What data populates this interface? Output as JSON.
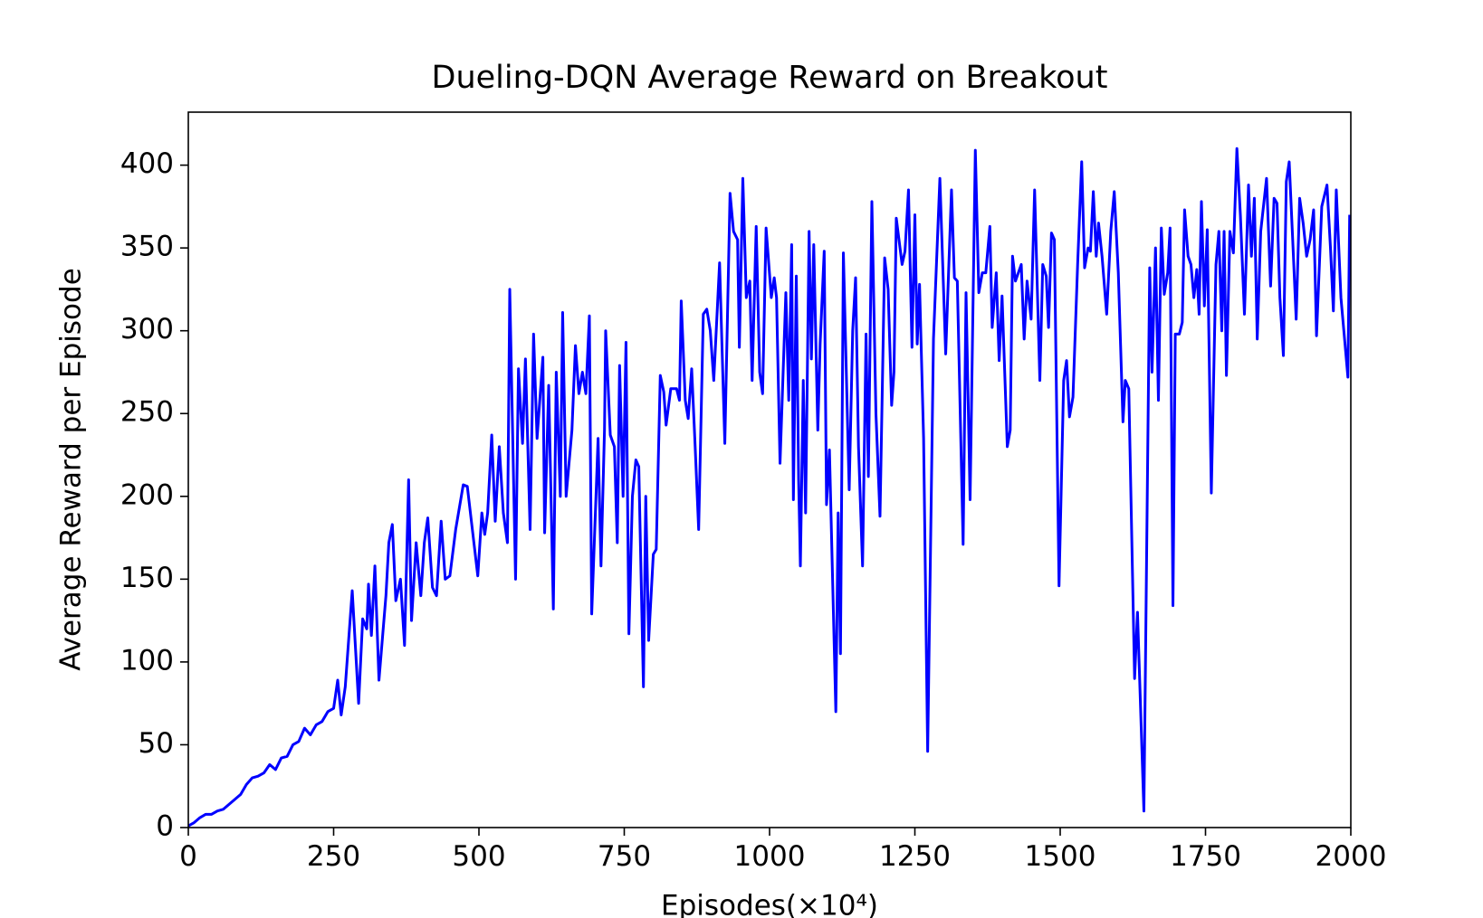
{
  "chart_data": {
    "type": "line",
    "title": "Dueling-DQN Average Reward on Breakout",
    "xlabel": "Episodes(×10⁴)",
    "ylabel": "Average Reward per Episode",
    "xlim": [
      0,
      2000
    ],
    "ylim": [
      0,
      432
    ],
    "xticks": [
      0,
      250,
      500,
      750,
      1000,
      1250,
      1500,
      1750,
      2000
    ],
    "yticks": [
      0,
      50,
      100,
      150,
      200,
      250,
      300,
      350,
      400
    ],
    "x": [
      0,
      10,
      20,
      30,
      40,
      50,
      60,
      70,
      80,
      90,
      100,
      110,
      120,
      130,
      140,
      150,
      160,
      170,
      180,
      190,
      200,
      210,
      220,
      230,
      240,
      250,
      257,
      263,
      270,
      282,
      293,
      300,
      307,
      310,
      315,
      321,
      328,
      340,
      345,
      351,
      357,
      365,
      372,
      379,
      384,
      392,
      400,
      406,
      412,
      420,
      427,
      435,
      442,
      450,
      460,
      473,
      480,
      487,
      498,
      505,
      510,
      515,
      522,
      528,
      535,
      542,
      549,
      553,
      563,
      568,
      575,
      580,
      588,
      594,
      600,
      610,
      613,
      620,
      628,
      633,
      640,
      644,
      650,
      660,
      666,
      672,
      678,
      684,
      690,
      694,
      705,
      710,
      716,
      718,
      726,
      733,
      738,
      742,
      748,
      753,
      758,
      764,
      770,
      775,
      783,
      787,
      792,
      800,
      805,
      812,
      818,
      822,
      830,
      840,
      845,
      848,
      855,
      860,
      866,
      872,
      878,
      886,
      892,
      898,
      904,
      914,
      923,
      932,
      938,
      945,
      948,
      954,
      960,
      966,
      970,
      977,
      983,
      988,
      994,
      1003,
      1008,
      1012,
      1018,
      1028,
      1033,
      1038,
      1041,
      1046,
      1050,
      1053,
      1058,
      1062,
      1068,
      1072,
      1076,
      1083,
      1087,
      1094,
      1098,
      1103,
      1114,
      1118,
      1122,
      1127,
      1137,
      1143,
      1148,
      1153,
      1160,
      1166,
      1170,
      1176,
      1183,
      1190,
      1198,
      1204,
      1210,
      1214,
      1218,
      1228,
      1233,
      1239,
      1245,
      1250,
      1254,
      1258,
      1265,
      1272,
      1282,
      1293,
      1303,
      1313,
      1318,
      1323,
      1333,
      1338,
      1345,
      1354,
      1360,
      1366,
      1372,
      1379,
      1383,
      1390,
      1395,
      1400,
      1409,
      1414,
      1418,
      1423,
      1428,
      1433,
      1438,
      1443,
      1450,
      1456,
      1465,
      1470,
      1476,
      1480,
      1485,
      1490,
      1498,
      1506,
      1511,
      1516,
      1522,
      1530,
      1537,
      1542,
      1548,
      1552,
      1557,
      1562,
      1566,
      1572,
      1580,
      1587,
      1593,
      1600,
      1608,
      1612,
      1618,
      1628,
      1633,
      1644,
      1654,
      1658,
      1664,
      1669,
      1674,
      1679,
      1685,
      1689,
      1694,
      1698,
      1705,
      1710,
      1714,
      1720,
      1725,
      1730,
      1735,
      1739,
      1743,
      1748,
      1753,
      1760,
      1768,
      1773,
      1778,
      1782,
      1786,
      1792,
      1798,
      1804,
      1810,
      1817,
      1824,
      1829,
      1834,
      1839,
      1845,
      1855,
      1862,
      1868,
      1873,
      1878,
      1884,
      1889,
      1894,
      1900,
      1906,
      1912,
      1918,
      1924,
      1930,
      1936,
      1941,
      1950,
      1959,
      1965,
      1970,
      1975,
      1983,
      1995,
      1998
    ],
    "series": [
      {
        "color": "#0000ff",
        "values": [
          1,
          3,
          6,
          8,
          8,
          10,
          11,
          14,
          17,
          20,
          26,
          30,
          31,
          33,
          38,
          35,
          42,
          43,
          50,
          52,
          60,
          56,
          62,
          64,
          70,
          72,
          89,
          68,
          85,
          143,
          75,
          126,
          120,
          147,
          116,
          158,
          89,
          140,
          172,
          183,
          137,
          150,
          110,
          210,
          125,
          172,
          140,
          172,
          187,
          145,
          140,
          185,
          150,
          152,
          180,
          207,
          206,
          185,
          152,
          190,
          177,
          190,
          237,
          185,
          230,
          190,
          172,
          325,
          150,
          277,
          232,
          283,
          180,
          298,
          235,
          284,
          178,
          267,
          132,
          275,
          200,
          311,
          200,
          240,
          291,
          262,
          275,
          262,
          309,
          129,
          235,
          158,
          240,
          300,
          237,
          230,
          172,
          279,
          200,
          293,
          117,
          200,
          222,
          218,
          85,
          200,
          113,
          165,
          168,
          273,
          263,
          243,
          265,
          265,
          258,
          318,
          258,
          247,
          277,
          230,
          180,
          310,
          313,
          300,
          270,
          341,
          232,
          383,
          360,
          355,
          290,
          392,
          320,
          330,
          270,
          363,
          275,
          262,
          362,
          320,
          332,
          320,
          220,
          323,
          258,
          352,
          198,
          333,
          210,
          158,
          270,
          190,
          360,
          283,
          352,
          240,
          292,
          348,
          195,
          228,
          70,
          190,
          105,
          347,
          204,
          300,
          332,
          230,
          158,
          298,
          212,
          378,
          250,
          188,
          344,
          325,
          255,
          275,
          368,
          340,
          348,
          385,
          290,
          370,
          292,
          328,
          235,
          46,
          295,
          392,
          286,
          385,
          332,
          330,
          171,
          323,
          198,
          409,
          323,
          335,
          335,
          363,
          302,
          335,
          282,
          321,
          230,
          240,
          345,
          330,
          335,
          340,
          295,
          330,
          307,
          385,
          270,
          340,
          333,
          302,
          359,
          355,
          146,
          270,
          282,
          248,
          260,
          340,
          402,
          338,
          350,
          348,
          384,
          345,
          365,
          345,
          310,
          360,
          384,
          335,
          245,
          270,
          265,
          90,
          130,
          10,
          338,
          275,
          350,
          258,
          362,
          322,
          335,
          362,
          134,
          298,
          298,
          305,
          373,
          345,
          340,
          320,
          337,
          310,
          378,
          315,
          361,
          202,
          340,
          360,
          300,
          360,
          273,
          360,
          347,
          410,
          370,
          310,
          388,
          345,
          380,
          295,
          360,
          392,
          327,
          380,
          377,
          320,
          285,
          390,
          402,
          355,
          307,
          380,
          365,
          345,
          355,
          373,
          297,
          375,
          388,
          350,
          312,
          385,
          320,
          272,
          370
        ]
      }
    ]
  }
}
